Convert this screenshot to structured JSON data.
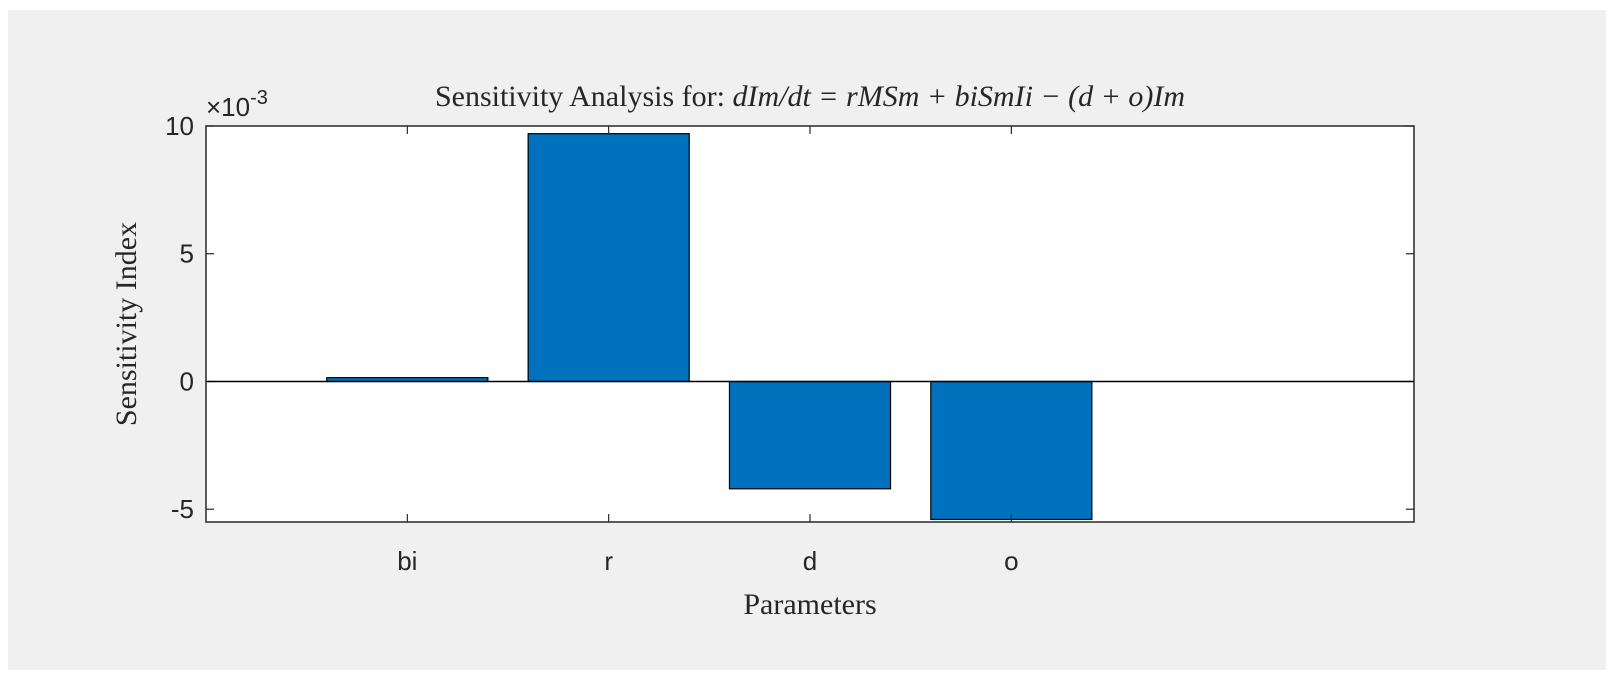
{
  "chart_data": {
    "type": "bar",
    "title_prefix": "Sensitivity Analysis for: ",
    "title_equation": "dIm/dt = rMSm + biSmIi − (d + o)Im",
    "xlabel": "Parameters",
    "ylabel": "Sensitivity Index",
    "exponent_label": "×10",
    "exponent_power": "-3",
    "categories": [
      "bi",
      "r",
      "d",
      "o"
    ],
    "values": [
      0.00015,
      0.0097,
      -0.0042,
      -0.0054
    ],
    "ylim": [
      -0.0055,
      0.01
    ],
    "yticks": [
      -0.005,
      0,
      0.005,
      0.01
    ],
    "ytick_labels": [
      "-5",
      "0",
      "5",
      "10"
    ],
    "bar_color": "#0072bd",
    "grid": false,
    "legend": "none"
  }
}
